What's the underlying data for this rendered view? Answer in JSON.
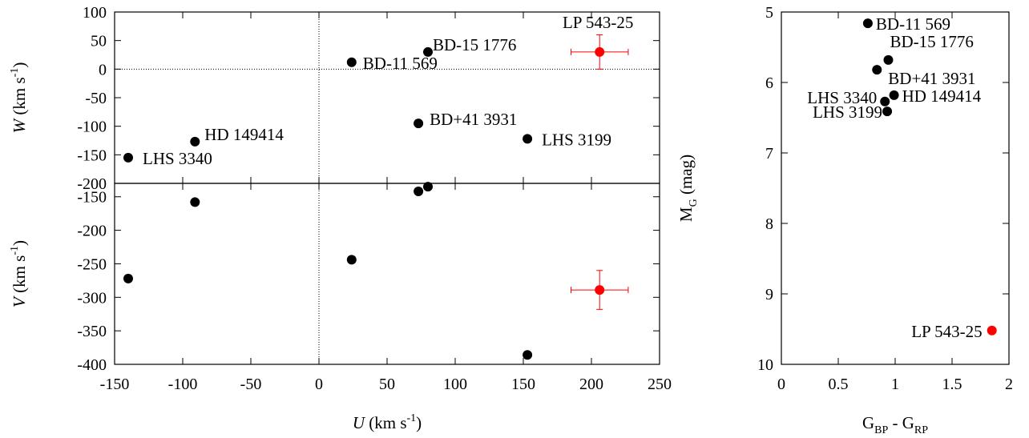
{
  "chart_data": [
    {
      "id": "uw",
      "type": "scatter",
      "xlabel": {
        "var": "U",
        "unit": " (km s",
        "exp": "-1",
        "close": ")"
      },
      "ylabel": {
        "var": "W",
        "unit": " (km s",
        "exp": "-1",
        "close": ")"
      },
      "xlim": [
        -150,
        250
      ],
      "ylim": [
        -200,
        100
      ],
      "xticks": [],
      "yticks": [
        -200,
        -150,
        -100,
        -50,
        0,
        50,
        100
      ],
      "zero_lines": true,
      "points": [
        {
          "name": "LHS 3340",
          "x": -140,
          "y": -155,
          "color": "#000000"
        },
        {
          "name": "HD 149414",
          "x": -91,
          "y": -127,
          "color": "#000000"
        },
        {
          "name": "BD-11 569",
          "x": 24,
          "y": 12,
          "color": "#000000"
        },
        {
          "name": "BD-15 1776",
          "x": 80,
          "y": 30,
          "color": "#000000"
        },
        {
          "name": "BD+41 3931",
          "x": 73,
          "y": -95,
          "color": "#000000"
        },
        {
          "name": "LHS 3199",
          "x": 153,
          "y": -122,
          "color": "#000000"
        },
        {
          "name": "LP 543-25",
          "x": 206,
          "y": 30,
          "color": "#ff0000",
          "xerr": 21,
          "yerr": 30
        }
      ]
    },
    {
      "id": "uv",
      "type": "scatter",
      "xlabel": {
        "var": "U",
        "unit": " (km s",
        "exp": "-1",
        "close": ")"
      },
      "ylabel": {
        "var": "V",
        "unit": " (km s",
        "exp": "-1",
        "close": ")"
      },
      "xlim": [
        -150,
        250
      ],
      "ylim": [
        -400,
        -130
      ],
      "xticks": [
        -150,
        -100,
        -50,
        0,
        50,
        100,
        150,
        200,
        250
      ],
      "yticks": [
        -400,
        -350,
        -300,
        -250,
        -200,
        -150
      ],
      "zero_lines": true,
      "points": [
        {
          "x": -140,
          "y": -272,
          "color": "#000000"
        },
        {
          "x": -91,
          "y": -158,
          "color": "#000000"
        },
        {
          "x": 24,
          "y": -244,
          "color": "#000000"
        },
        {
          "x": 73,
          "y": -142,
          "color": "#000000"
        },
        {
          "x": 80,
          "y": -135,
          "color": "#000000"
        },
        {
          "x": 153,
          "y": -386,
          "color": "#000000"
        },
        {
          "x": 206,
          "y": -289,
          "color": "#ff0000",
          "xerr": 21,
          "yerr": 29
        }
      ]
    },
    {
      "id": "cmd",
      "type": "scatter",
      "xlabel": {
        "var": "G",
        "sub": "BP",
        "mid": " - G",
        "sub2": "RP"
      },
      "ylabel": {
        "var": "M",
        "sub": "G",
        "unit": " (mag)"
      },
      "xlim": [
        0,
        2
      ],
      "ylim": [
        10,
        5
      ],
      "y_inverted": true,
      "xticks": [
        "0",
        "0.5",
        "1",
        "1.5",
        "2"
      ],
      "yticks": [
        5,
        6,
        7,
        8,
        9,
        10
      ],
      "zero_lines": false,
      "points": [
        {
          "name": "BD-11 569",
          "x": 0.76,
          "y": 5.16,
          "color": "#000000"
        },
        {
          "name": "BD-15 1776",
          "x": 0.94,
          "y": 5.68,
          "color": "#000000"
        },
        {
          "name": "BD+41 3931",
          "x": 0.84,
          "y": 5.82,
          "color": "#000000"
        },
        {
          "name": "HD 149414",
          "x": 0.99,
          "y": 6.18,
          "color": "#000000"
        },
        {
          "name": "LHS 3340",
          "x": 0.91,
          "y": 6.27,
          "color": "#000000"
        },
        {
          "name": "LHS 3199",
          "x": 0.93,
          "y": 6.41,
          "color": "#000000"
        },
        {
          "name": "LP 543-25",
          "x": 1.85,
          "y": 9.52,
          "color": "#ff0000"
        }
      ]
    }
  ]
}
